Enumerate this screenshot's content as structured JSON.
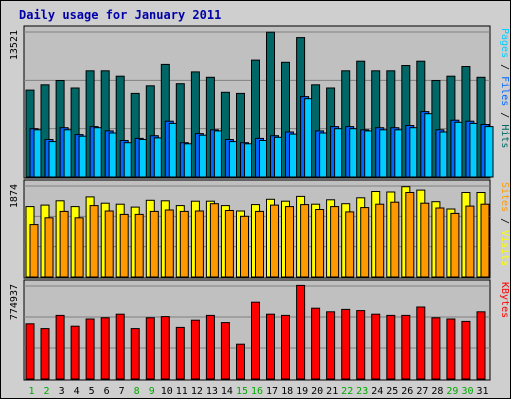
{
  "chart_data": {
    "type": "bar",
    "title": "Daily usage for January 2011",
    "categories": [
      "1",
      "2",
      "3",
      "4",
      "5",
      "6",
      "7",
      "8",
      "9",
      "10",
      "11",
      "12",
      "13",
      "14",
      "15",
      "16",
      "17",
      "18",
      "19",
      "20",
      "21",
      "22",
      "23",
      "24",
      "25",
      "26",
      "27",
      "28",
      "29",
      "30",
      "31"
    ],
    "weekend_days": [
      "1",
      "2",
      "8",
      "9",
      "15",
      "16",
      "22",
      "23",
      "29",
      "30"
    ],
    "panels": [
      {
        "id": "top",
        "ymax_label": "13521",
        "ymax": 13521,
        "series": [
          {
            "name": "Hits",
            "color": "#006666",
            "values": [
              8100,
              8600,
              9000,
              8300,
              9900,
              9900,
              9400,
              7800,
              8500,
              10500,
              8700,
              9800,
              9300,
              7900,
              7800,
              10900,
              13500,
              10700,
              13000,
              8600,
              8300,
              9900,
              10800,
              9900,
              9900,
              10400,
              10800,
              9000,
              9400,
              10300,
              9300
            ]
          },
          {
            "name": "Files",
            "color": "#0066ff",
            "values": [
              4500,
              3500,
              4600,
              3950,
              4700,
              4300,
              3400,
              3600,
              3850,
              5200,
              3200,
              4050,
              4400,
              3500,
              3200,
              3600,
              3850,
              4200,
              7500,
              4300,
              4700,
              4700,
              4400,
              4600,
              4600,
              4800,
              6100,
              4400,
              5300,
              5200,
              4900
            ]
          },
          {
            "name": "Pages",
            "color": "#00ccff",
            "values": [
              4400,
              3300,
              4400,
              3800,
              4600,
              4100,
              3200,
              3500,
              3650,
              5000,
              3100,
              3900,
              4300,
              3300,
              3100,
              3400,
              3700,
              4000,
              7300,
              4100,
              4500,
              4500,
              4300,
              4400,
              4400,
              4600,
              5900,
              4200,
              5100,
              5000,
              4700
            ]
          }
        ]
      },
      {
        "id": "mid",
        "ymax_label": "1874",
        "ymax": 1874,
        "series": [
          {
            "name": "Visits",
            "color": "#ffff00",
            "values": [
              1450,
              1480,
              1570,
              1450,
              1650,
              1520,
              1500,
              1440,
              1580,
              1570,
              1470,
              1560,
              1560,
              1470,
              1360,
              1490,
              1600,
              1560,
              1660,
              1500,
              1590,
              1510,
              1630,
              1760,
              1750,
              1860,
              1790,
              1550,
              1400,
              1740,
              1740
            ]
          },
          {
            "name": "Sites",
            "color": "#ff9900",
            "values": [
              1080,
              1220,
              1350,
              1220,
              1470,
              1360,
              1290,
              1290,
              1350,
              1380,
              1350,
              1360,
              1510,
              1370,
              1250,
              1350,
              1480,
              1450,
              1490,
              1390,
              1450,
              1340,
              1430,
              1500,
              1540,
              1740,
              1520,
              1420,
              1310,
              1460,
              1500
            ]
          }
        ]
      },
      {
        "id": "bot",
        "ymax_label": "774937",
        "ymax": 774937,
        "series": [
          {
            "name": "KBytes",
            "color": "#ff0000",
            "values": [
              460000,
              420000,
              530000,
              440000,
              500000,
              510000,
              540000,
              420000,
              510000,
              520000,
              430000,
              490000,
              530000,
              470000,
              290000,
              640000,
              540000,
              530000,
              780000,
              590000,
              560000,
              580000,
              570000,
              540000,
              530000,
              530000,
              600000,
              510000,
              500000,
              480000,
              560000
            ]
          }
        ]
      }
    ],
    "legend_separator": " / "
  },
  "colors": {
    "background": "#ffffff",
    "plot_bg": "#c0c0c0",
    "panel_bg": "#c8c8c8",
    "title": "#0000aa",
    "weekday_label": "#000000",
    "weekend_label": "#00aa00"
  }
}
